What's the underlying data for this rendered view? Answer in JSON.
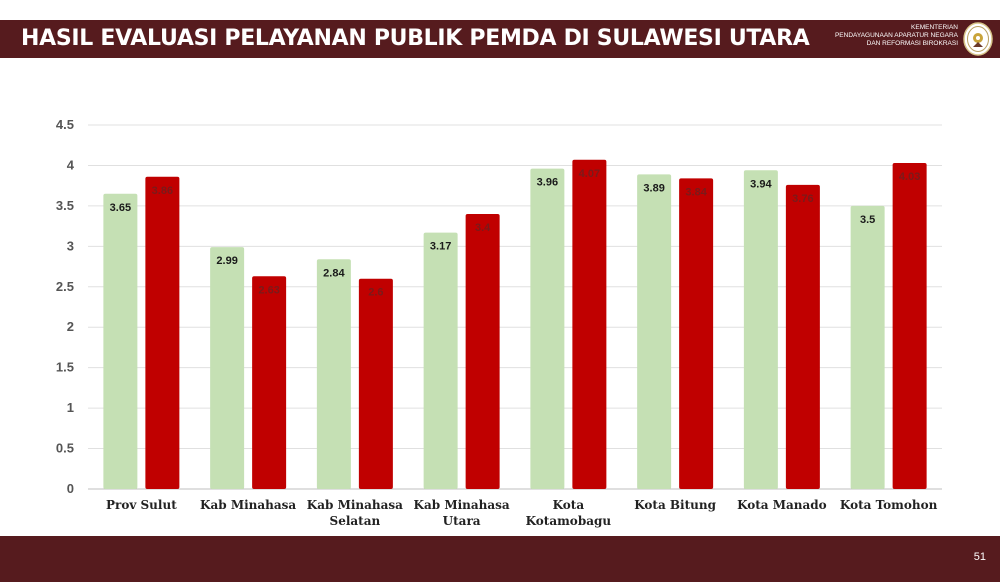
{
  "header": {
    "title": "HASIL EVALUASI PELAYANAN PUBLIK PEMDA DI SULAWESI UTARA",
    "ministry_lines": [
      "KEMENTERIAN",
      "PENDAYAGUNAAN APARATUR NEGARA",
      "DAN REFORMASI BIROKRASI"
    ]
  },
  "footer": {
    "page_number": "51"
  },
  "chart_data": {
    "type": "bar",
    "categories": [
      [
        "Prov Sulut"
      ],
      [
        "Kab Minahasa"
      ],
      [
        "Kab Minahasa",
        "Selatan"
      ],
      [
        "Kab Minahasa",
        "Utara"
      ],
      [
        "Kota",
        "Kotamobagu"
      ],
      [
        "Kota Bitung"
      ],
      [
        "Kota Manado"
      ],
      [
        "Kota Tomohon"
      ]
    ],
    "series": [
      {
        "values": [
          3.65,
          2.99,
          2.84,
          3.17,
          3.96,
          3.89,
          3.94,
          3.5
        ],
        "color": "#c5e0b4",
        "label_color": "#1a1a1a"
      },
      {
        "values": [
          3.86,
          2.63,
          2.6,
          3.4,
          4.07,
          3.84,
          3.76,
          4.03
        ],
        "color": "#c00000",
        "label_color": "#7a1a1a"
      }
    ],
    "ylim": [
      0,
      4.5
    ],
    "yticks": [
      "0",
      "0.5",
      "1",
      "1.5",
      "2",
      "2.5",
      "3",
      "3.5",
      "4",
      "4.5"
    ],
    "grid": true,
    "xlabel": "",
    "ylabel": ""
  },
  "colors": {
    "header_bg": "#561b1e",
    "bar_green": "#c5e0b4",
    "bar_red": "#c00000"
  }
}
